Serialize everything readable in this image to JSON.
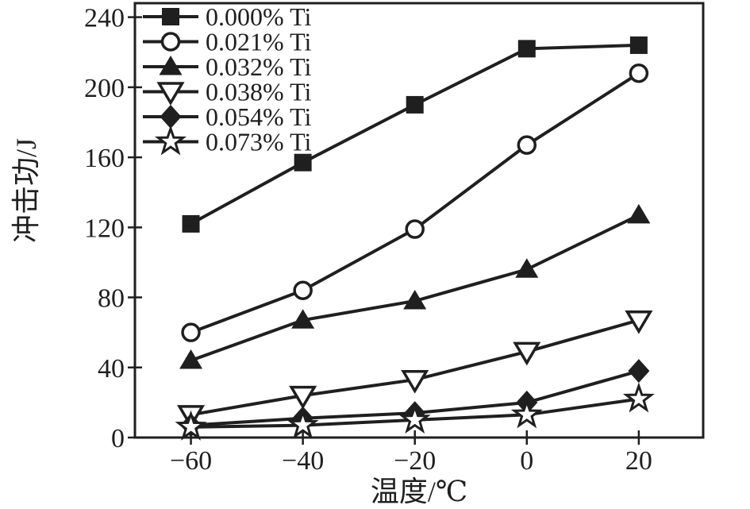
{
  "chart_data": {
    "type": "line",
    "title": "",
    "xlabel": "温度/℃",
    "ylabel": "冲击功/J",
    "x": [
      -60,
      -40,
      -20,
      0,
      20
    ],
    "x_tick_labels": [
      "−60",
      "−40",
      "−20",
      "0",
      "20"
    ],
    "y_tick_values": [
      0,
      40,
      80,
      120,
      160,
      200,
      240
    ],
    "y_tick_labels": [
      "0",
      "40",
      "80",
      "120",
      "160",
      "200",
      "240"
    ],
    "xlim": [
      -70,
      31.5
    ],
    "ylim": [
      0,
      248
    ],
    "grid": false,
    "legend_position": "top-left-inside",
    "line_color": "#1f1f1f",
    "background_color": "#ffffff",
    "series": [
      {
        "name": "0.000% Ti",
        "marker": "filled-square-marker",
        "values": [
          122,
          157,
          190,
          222,
          224
        ]
      },
      {
        "name": "0.021% Ti",
        "marker": "open-circle-marker",
        "values": [
          60,
          84,
          119,
          167,
          208
        ]
      },
      {
        "name": "0.032% Ti",
        "marker": "filled-triangle-up-marker",
        "values": [
          44,
          67,
          78,
          96,
          127
        ]
      },
      {
        "name": "0.038% Ti",
        "marker": "open-triangle-down-marker",
        "values": [
          13,
          24,
          33,
          49,
          67
        ]
      },
      {
        "name": "0.054% Ti",
        "marker": "filled-diamond-marker",
        "values": [
          7,
          11,
          14,
          20,
          38
        ]
      },
      {
        "name": "0.073% Ti",
        "marker": "open-star-marker",
        "values": [
          6,
          7,
          10,
          13,
          22
        ]
      }
    ]
  }
}
